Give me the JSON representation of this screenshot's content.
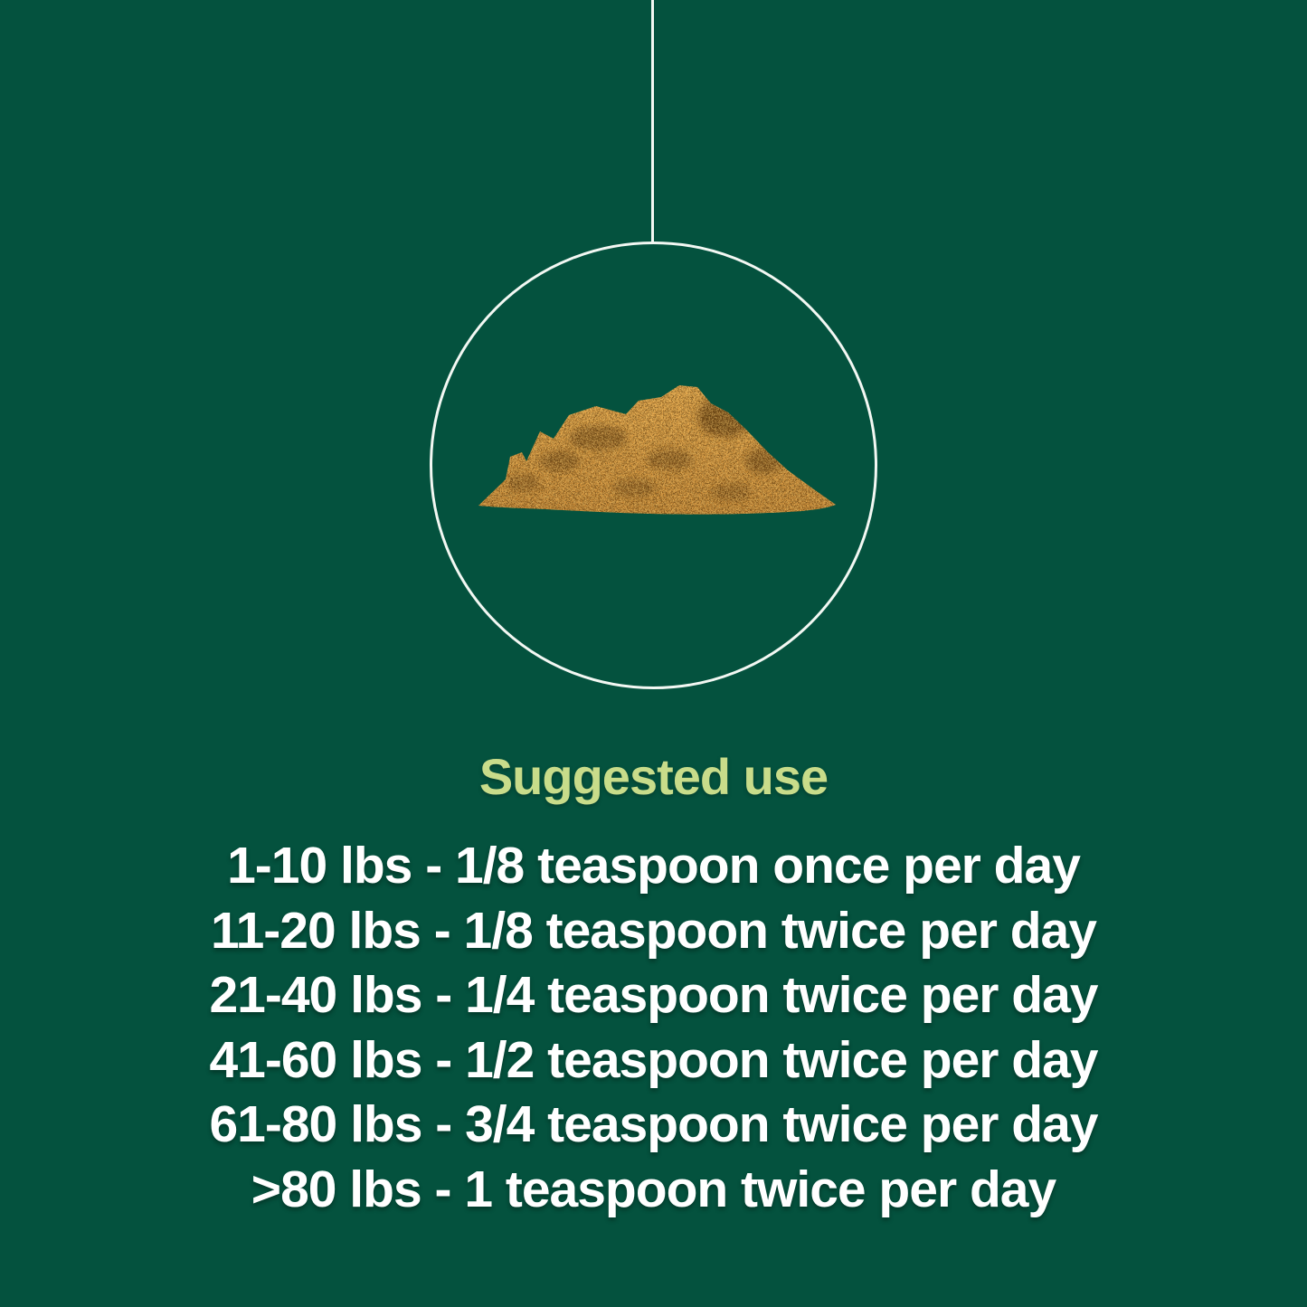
{
  "colors": {
    "background": "#04523E",
    "line": "#F3F8F3",
    "heading": "#C8DC8A",
    "text": "#FFFFFF",
    "powder_highlight": "#E2A64B",
    "powder_mid": "#C08434",
    "powder_dark": "#6B4414",
    "powder_deep": "#4F330D",
    "powder_light_speckle": "#F0C46C"
  },
  "illustration": {
    "name": "hanging-circle-with-powder-pile",
    "subject": "pile of brown powder"
  },
  "heading": {
    "text": "Suggested use"
  },
  "dosage": {
    "lines": [
      "1-10 lbs - 1/8 teaspoon once per day",
      "11-20 lbs - 1/8 teaspoon twice per day",
      "21-40 lbs - 1/4 teaspoon twice per day",
      "41-60 lbs - 1/2 teaspoon twice per day",
      "61-80 lbs - 3/4 teaspoon twice per day",
      ">80 lbs - 1 teaspoon twice per day"
    ]
  }
}
